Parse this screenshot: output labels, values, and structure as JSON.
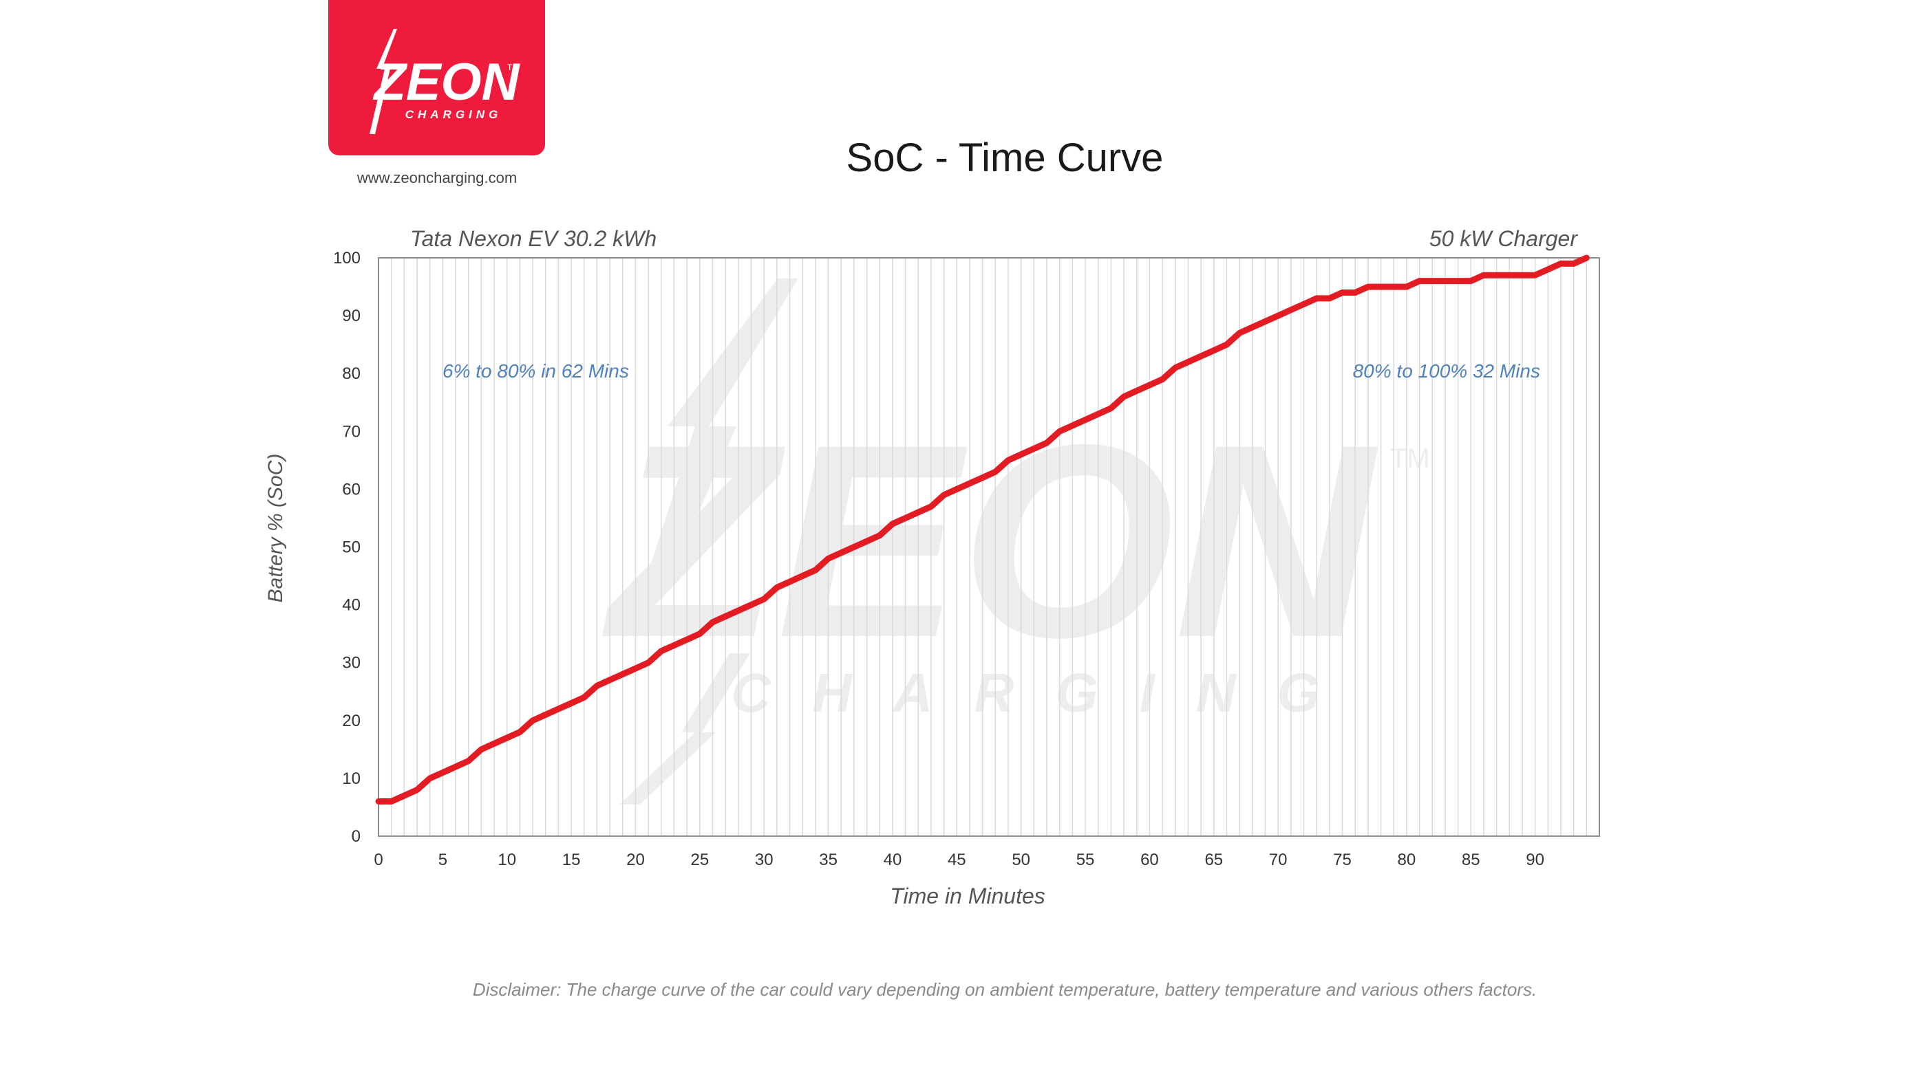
{
  "logo": {
    "brand": "ZEON",
    "subtitle": "CHARGING",
    "trademark": "TM",
    "website": "www.zeoncharging.com",
    "brand_color": "#ee1b3c"
  },
  "chart_data": {
    "type": "line",
    "title": "SoC - Time Curve",
    "subtitle_left": "Tata Nexon EV 30.2 kWh",
    "subtitle_right": "50 kW Charger",
    "xlabel": "Time in Minutes",
    "ylabel": "Battery % (SoC)",
    "xlim": [
      0,
      95
    ],
    "ylim": [
      0,
      100
    ],
    "x_ticks": [
      0,
      5,
      10,
      15,
      20,
      25,
      30,
      35,
      40,
      45,
      50,
      55,
      60,
      65,
      70,
      75,
      80,
      85,
      90
    ],
    "y_ticks": [
      0,
      10,
      20,
      30,
      40,
      50,
      60,
      70,
      80,
      90,
      100
    ],
    "grid": "vertical",
    "line_color": "#e31b23",
    "annotations": [
      "6% to 80% in 62 Mins",
      "80% to 100% 32 Mins"
    ],
    "series": [
      {
        "x": [
          0,
          1,
          2,
          3,
          4,
          5,
          6,
          7,
          8,
          9,
          10,
          11,
          12,
          13,
          14,
          15,
          16,
          17,
          18,
          19,
          20,
          21,
          22,
          23,
          24,
          25,
          26,
          27,
          28,
          29,
          30,
          31,
          32,
          33,
          34,
          35,
          36,
          37,
          38,
          39,
          40,
          41,
          42,
          43,
          44,
          45,
          46,
          47,
          48,
          49,
          50,
          51,
          52,
          53,
          54,
          55,
          56,
          57,
          58,
          59,
          60,
          61,
          62,
          63,
          64,
          65,
          66,
          67,
          68,
          69,
          70,
          71,
          72,
          73,
          74,
          75,
          76,
          77,
          78,
          79,
          80,
          81,
          82,
          83,
          84,
          85,
          86,
          87,
          88,
          89,
          90,
          91,
          92,
          93,
          94
        ],
        "y": [
          6,
          6,
          7,
          8,
          10,
          11,
          12,
          13,
          15,
          16,
          17,
          18,
          20,
          21,
          22,
          23,
          24,
          26,
          27,
          28,
          29,
          30,
          32,
          33,
          34,
          35,
          37,
          38,
          39,
          40,
          41,
          43,
          44,
          45,
          46,
          48,
          49,
          50,
          51,
          52,
          54,
          55,
          56,
          57,
          59,
          60,
          61,
          62,
          63,
          65,
          66,
          67,
          68,
          70,
          71,
          72,
          73,
          74,
          76,
          77,
          78,
          79,
          81,
          82,
          83,
          84,
          85,
          87,
          88,
          89,
          90,
          91,
          92,
          93,
          93,
          94,
          94,
          95,
          95,
          95,
          95,
          96,
          96,
          96,
          96,
          96,
          97,
          97,
          97,
          97,
          97,
          98,
          99,
          99,
          100
        ]
      }
    ]
  },
  "disclaimer": "Disclaimer:  The charge curve of the car could vary depending on ambient temperature,  battery temperature  and various others  factors."
}
